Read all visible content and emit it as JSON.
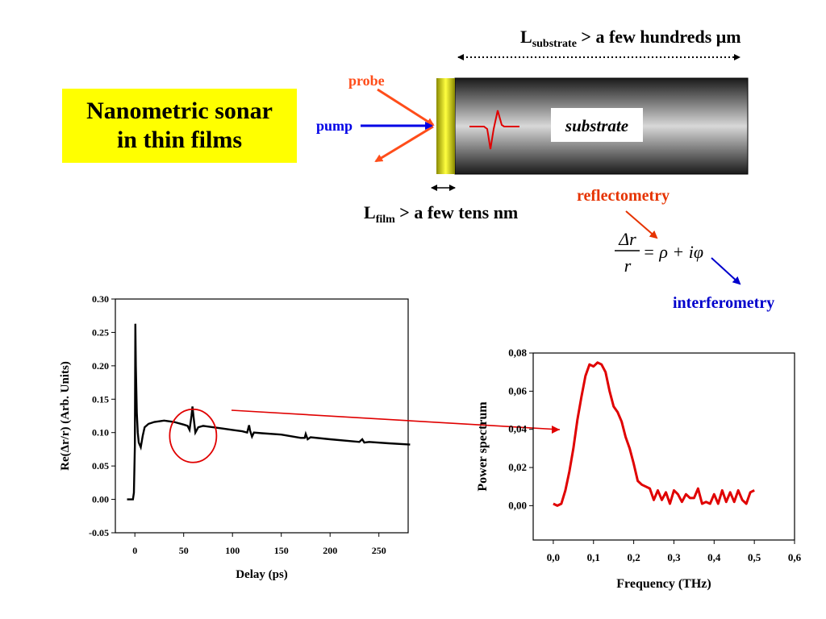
{
  "diagram": {
    "title": "Nanometric sonar\nin thin films",
    "substrate_length_label": {
      "main": "L",
      "sub": "substrate",
      "rest": " > a few hundreds μm"
    },
    "film_length_label": {
      "main": "L",
      "sub": "film",
      "rest": " > a few tens nm"
    },
    "probe_label": "probe",
    "pump_label": "pump",
    "substrate_label": "substrate",
    "reflectometry_label": "reflectometry",
    "interferometry_label": "interferometry",
    "equation": {
      "numerator": "Δr",
      "denominator": "r",
      "rhs": "= ρ + iφ"
    },
    "colors": {
      "probe": "#ff4d1a",
      "pump": "#0000e6",
      "reflectometry": "#e63300",
      "interferometry": "#0000cc",
      "highlight": "#e00000",
      "title_bg": "#ffff00"
    }
  },
  "chart_data": [
    {
      "type": "line",
      "xlabel": "Delay (ps)",
      "ylabel": "Re(Δr/r) (Arb. Units)",
      "xlim": [
        -20,
        280
      ],
      "ylim": [
        -0.05,
        0.3
      ],
      "xticks": [
        0,
        50,
        100,
        150,
        200,
        250
      ],
      "yticks": [
        -0.05,
        0.0,
        0.05,
        0.1,
        0.15,
        0.2,
        0.25,
        0.3
      ],
      "ytick_labels": [
        "-0.05",
        "0.00",
        "0.05",
        "0.10",
        "0.15",
        "0.20",
        "0.25",
        "0.30"
      ],
      "series": [
        {
          "x": [
            -8,
            -2,
            -1,
            0,
            0.5,
            1,
            2,
            3,
            4,
            6,
            8,
            10,
            14,
            20,
            30,
            40,
            50,
            54,
            56,
            58,
            59,
            60,
            62,
            65,
            70,
            80,
            90,
            100,
            110,
            115,
            117,
            118,
            120,
            122,
            130,
            150,
            170,
            174,
            175,
            177,
            180,
            200,
            230,
            233,
            235,
            240,
            260,
            282
          ],
          "y": [
            0.0,
            0.0,
            0.01,
            0.08,
            0.263,
            0.2,
            0.13,
            0.1,
            0.085,
            0.078,
            0.095,
            0.108,
            0.113,
            0.116,
            0.118,
            0.116,
            0.112,
            0.11,
            0.104,
            0.125,
            0.139,
            0.125,
            0.1,
            0.108,
            0.11,
            0.108,
            0.106,
            0.104,
            0.102,
            0.1,
            0.111,
            0.103,
            0.094,
            0.1,
            0.099,
            0.097,
            0.092,
            0.092,
            0.098,
            0.09,
            0.093,
            0.09,
            0.086,
            0.09,
            0.085,
            0.086,
            0.084,
            0.082
          ]
        }
      ],
      "highlight": {
        "x": 58,
        "y": 0.1
      }
    },
    {
      "type": "line",
      "xlabel": "Frequency (THz)",
      "ylabel": "Power spectrum",
      "xlim": [
        -0.05,
        0.6
      ],
      "ylim": [
        -0.018,
        0.08
      ],
      "xticks": [
        0.0,
        0.1,
        0.2,
        0.3,
        0.4,
        0.5,
        0.6
      ],
      "xtick_labels": [
        "0,0",
        "0,1",
        "0,2",
        "0,3",
        "0,4",
        "0,5",
        "0,6"
      ],
      "yticks": [
        0.0,
        0.02,
        0.04,
        0.06,
        0.08
      ],
      "ytick_labels": [
        "0,00",
        "0,02",
        "0,04",
        "0,06",
        "0,08"
      ],
      "series": [
        {
          "x": [
            0.0,
            0.01,
            0.02,
            0.03,
            0.04,
            0.05,
            0.06,
            0.07,
            0.08,
            0.09,
            0.1,
            0.11,
            0.12,
            0.13,
            0.14,
            0.15,
            0.16,
            0.17,
            0.18,
            0.19,
            0.2,
            0.21,
            0.22,
            0.23,
            0.24,
            0.25,
            0.26,
            0.27,
            0.28,
            0.29,
            0.3,
            0.31,
            0.32,
            0.33,
            0.34,
            0.35,
            0.36,
            0.37,
            0.38,
            0.39,
            0.4,
            0.41,
            0.42,
            0.43,
            0.44,
            0.45,
            0.46,
            0.47,
            0.48,
            0.49,
            0.5
          ],
          "y": [
            0.001,
            0.0,
            0.001,
            0.008,
            0.018,
            0.03,
            0.045,
            0.057,
            0.068,
            0.074,
            0.073,
            0.075,
            0.074,
            0.07,
            0.06,
            0.052,
            0.049,
            0.044,
            0.036,
            0.03,
            0.022,
            0.013,
            0.011,
            0.01,
            0.009,
            0.003,
            0.008,
            0.003,
            0.007,
            0.001,
            0.008,
            0.006,
            0.002,
            0.006,
            0.004,
            0.004,
            0.009,
            0.001,
            0.002,
            0.001,
            0.006,
            0.001,
            0.008,
            0.002,
            0.007,
            0.002,
            0.008,
            0.003,
            0.001,
            0.007,
            0.008
          ]
        }
      ]
    }
  ]
}
